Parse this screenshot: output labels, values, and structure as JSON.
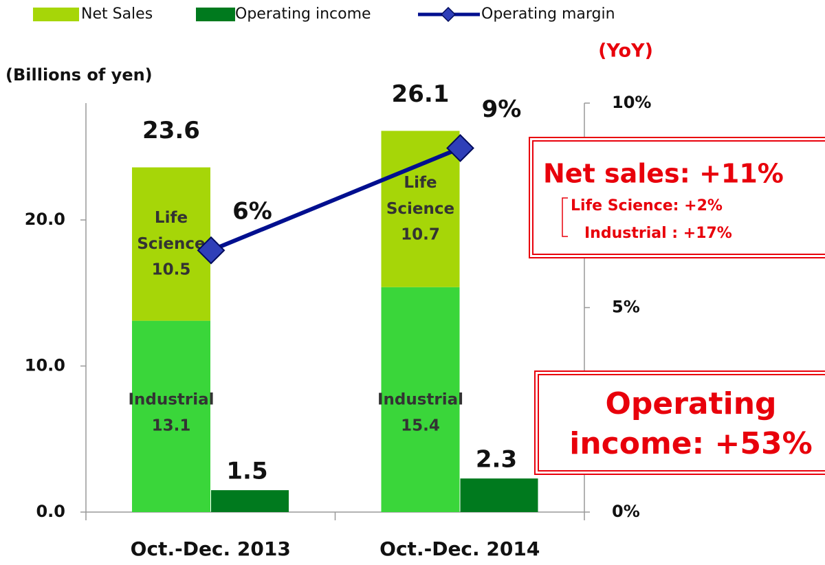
{
  "chart_data": {
    "type": "stacked-bar-line",
    "y_label": "(Billions of yen)",
    "y2_label": "(YoY)",
    "categories": [
      "Oct.-Dec. 2013",
      "Oct.-Dec. 2014"
    ],
    "ylim": [
      0,
      28
    ],
    "yticks": [
      {
        "value": 0,
        "label": "0.0"
      },
      {
        "value": 10,
        "label": "10.0"
      },
      {
        "value": 20,
        "label": "20.0"
      }
    ],
    "y2lim": [
      0,
      10
    ],
    "y2ticks": [
      {
        "value": 0,
        "label": "0%"
      },
      {
        "value": 5,
        "label": "5%"
      },
      {
        "value": 10,
        "label": "10%"
      }
    ],
    "net_sales": {
      "name": "Net Sales",
      "color": "#a6d608",
      "totals": [
        23.6,
        26.1
      ]
    },
    "series": [
      {
        "name": "Industrial",
        "color": "#3ad63a",
        "values": [
          13.1,
          15.4
        ]
      },
      {
        "name": "Life Science",
        "color": "#a6d608",
        "values": [
          10.5,
          10.7
        ]
      },
      {
        "name": "Operating income",
        "color": "#007a1e",
        "values": [
          1.5,
          2.3
        ]
      },
      {
        "name": "Operating margin",
        "color": "#000f8f",
        "axis": "y2",
        "values": [
          6.4,
          8.9
        ],
        "value_labels": [
          "6%",
          "9%"
        ]
      }
    ],
    "annotations": {
      "net_sales": {
        "title": "Net sales: +11%",
        "lines": [
          "Life Science: +2%",
          "Industrial : +17%"
        ]
      },
      "operating_income": {
        "lines": [
          "Operating",
          "income: +53%"
        ]
      }
    }
  }
}
